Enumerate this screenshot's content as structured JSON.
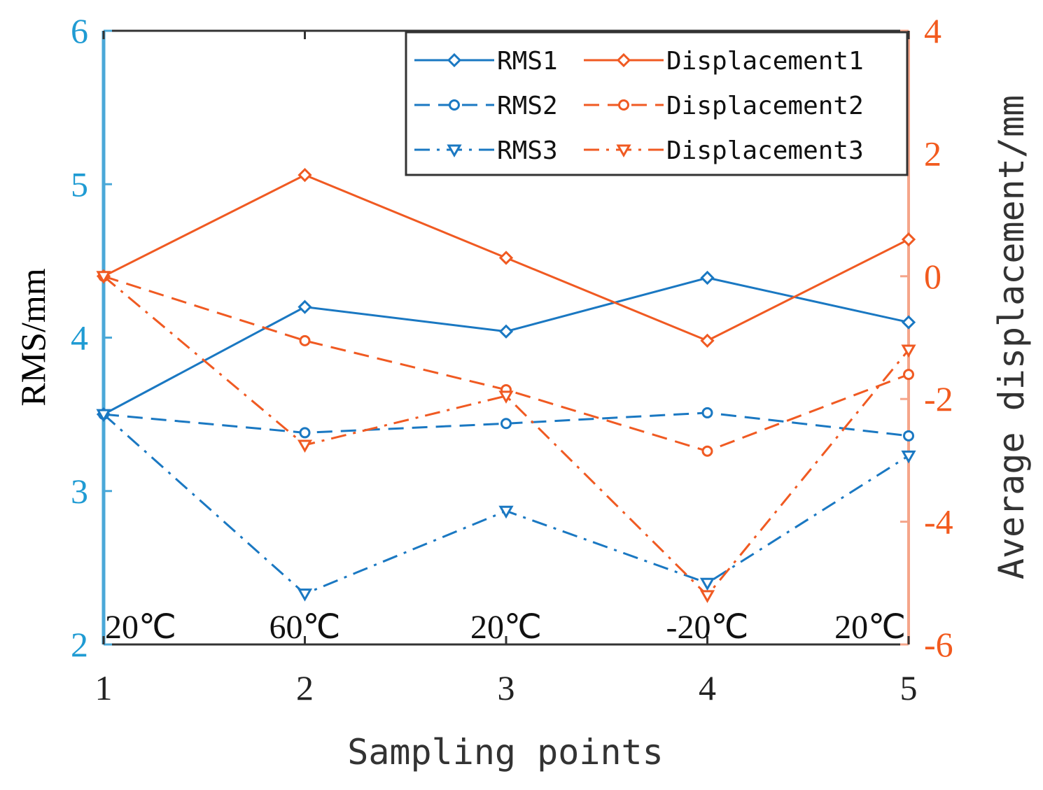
{
  "chart_data": {
    "type": "line",
    "title": "",
    "x": [
      1,
      2,
      3,
      4,
      5
    ],
    "xticks": [
      "1",
      "2",
      "3",
      "4",
      "5"
    ],
    "xlabel": "Sampling points",
    "xlim": [
      1,
      5
    ],
    "ylabel_left": "RMS/mm",
    "ylim_left": [
      2,
      6
    ],
    "yticks_left": [
      "2",
      "3",
      "4",
      "5",
      "6"
    ],
    "ylabel_right": "Average displacement/mm",
    "ylim_right": [
      -6,
      4
    ],
    "yticks_right": [
      "-6",
      "-4",
      "-2",
      "0",
      "2",
      "4"
    ],
    "grid": false,
    "legend_position": "top-right",
    "colors": {
      "left": "#1f9bd3",
      "right": "#f25a1e",
      "rms": "#1a78c2",
      "disp": "#f05a22"
    },
    "series": [
      {
        "name": "RMS1",
        "axis": "left",
        "style": "solid",
        "marker": "diamond",
        "values": [
          3.5,
          4.2,
          4.04,
          4.39,
          4.1
        ]
      },
      {
        "name": "RMS2",
        "axis": "left",
        "style": "dashed",
        "marker": "circle",
        "values": [
          3.5,
          3.38,
          3.44,
          3.51,
          3.36
        ]
      },
      {
        "name": "RMS3",
        "axis": "left",
        "style": "dashdot",
        "marker": "triangle-down",
        "values": [
          3.5,
          2.33,
          2.87,
          2.4,
          3.23
        ]
      },
      {
        "name": "Displacement1",
        "axis": "right",
        "style": "solid",
        "marker": "diamond",
        "values": [
          0.0,
          1.65,
          0.3,
          -1.05,
          0.6
        ]
      },
      {
        "name": "Displacement2",
        "axis": "right",
        "style": "dashed",
        "marker": "circle",
        "values": [
          0.0,
          -1.05,
          -1.85,
          -2.85,
          -1.6
        ]
      },
      {
        "name": "Displacement3",
        "axis": "right",
        "style": "dashdot",
        "marker": "triangle-down",
        "values": [
          0.0,
          -2.75,
          -1.95,
          -5.2,
          -1.2
        ]
      }
    ],
    "annotations": [
      "20℃",
      "60℃",
      "20℃",
      "-20℃",
      "20℃"
    ]
  }
}
